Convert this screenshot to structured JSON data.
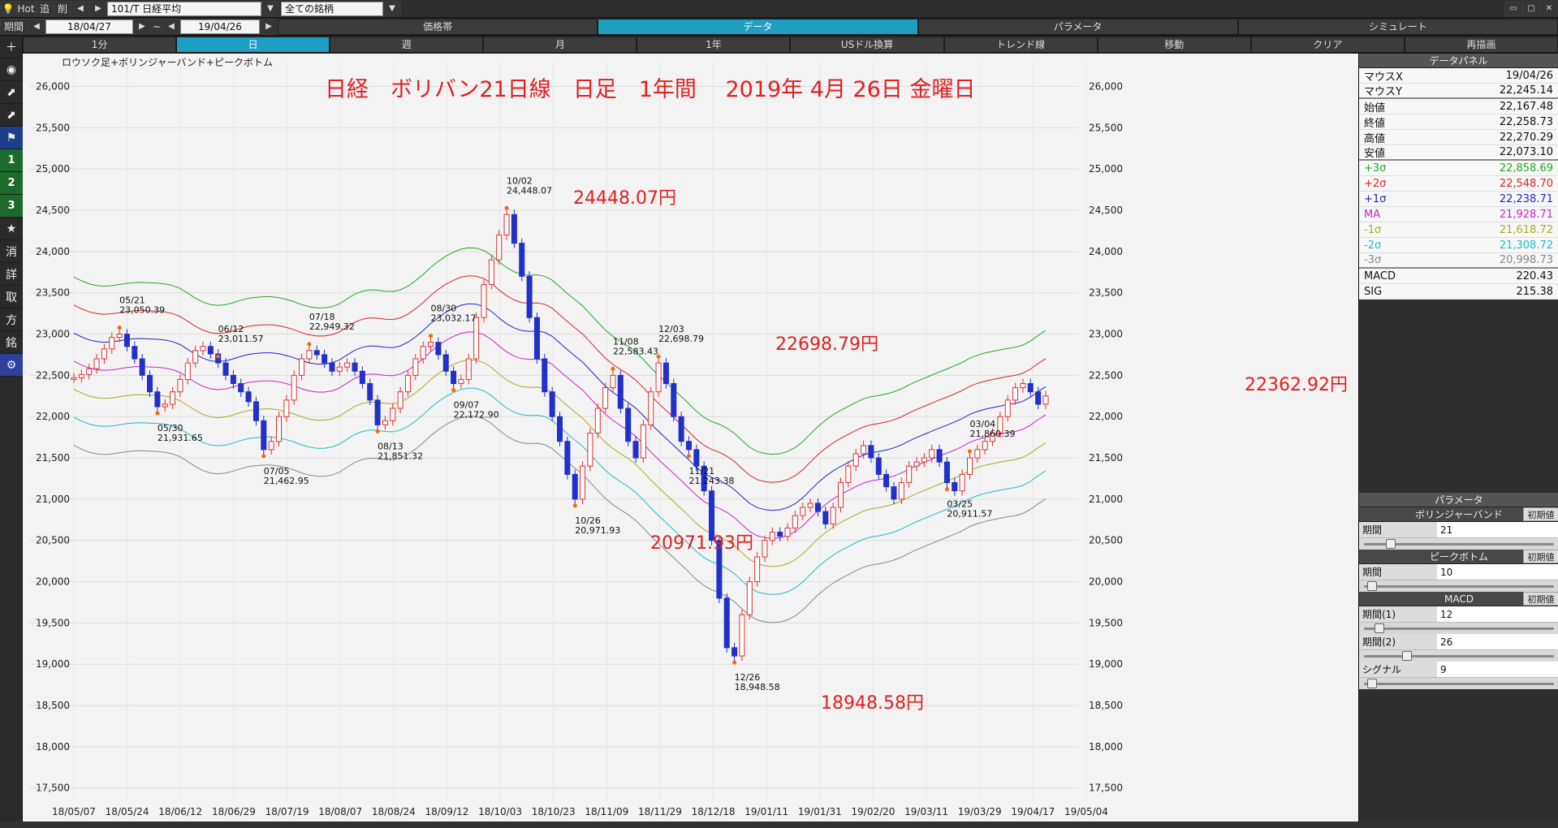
{
  "toolbar": {
    "hot_label": "Hot",
    "tsui_label": "追",
    "sakujo_label": "削",
    "symbol": "101/T 日経平均",
    "universe": "全ての銘柄"
  },
  "row2": {
    "period_label": "期間",
    "from_date": "18/04/27",
    "tilde": "~",
    "to_date": "19/04/26",
    "tabs": [
      "価格帯",
      "データ",
      "パラメータ",
      "シミュレート"
    ],
    "active_tab": 1
  },
  "row3": {
    "items": [
      "1分",
      "日",
      "週",
      "月",
      "1年",
      "USドル換算",
      "トレンド線",
      "移動",
      "クリア",
      "再描画"
    ],
    "active": 1
  },
  "sidebar": {
    "items": [
      "＋",
      "◉",
      "⬈",
      "⬈",
      "⚑",
      "1",
      "2",
      "3",
      "★",
      "消",
      "詳",
      "取",
      "方",
      "銘",
      "⚙"
    ]
  },
  "chart": {
    "caption": "ロウソク足+ボリンジャーバンド+ピークボトム",
    "title": "日経　ボリバン21日線　日足　1年間　 2019年 4月 26日 金曜日",
    "annotations": [
      "24448.07円",
      "22698.79円",
      "20971.93円",
      "18948.58円",
      "22362.92円"
    ]
  },
  "chart_data": {
    "type": "candlestick",
    "y_ticks": [
      17500,
      18000,
      18500,
      19000,
      19500,
      20000,
      20500,
      21000,
      21500,
      22000,
      22500,
      23000,
      23500,
      24000,
      24500,
      25000,
      25500,
      26000
    ],
    "y_tick_labels": [
      "17,500",
      "18,000",
      "18,500",
      "19,000",
      "19,500",
      "20,000",
      "20,500",
      "21,000",
      "21,500",
      "22,000",
      "22,500",
      "23,000",
      "23,500",
      "24,000",
      "24,500",
      "25,000",
      "25,500",
      "26,000"
    ],
    "ylim": [
      17350,
      26300
    ],
    "x_labels": [
      "18/05/07",
      "18/05/24",
      "18/06/12",
      "18/06/29",
      "18/07/19",
      "18/08/07",
      "18/08/24",
      "18/09/12",
      "18/10/03",
      "18/10/23",
      "18/11/09",
      "18/11/29",
      "18/12/18",
      "19/01/11",
      "19/01/31",
      "19/02/20",
      "19/03/11",
      "19/03/29",
      "19/04/17",
      "19/05/04"
    ],
    "close": [
      22470,
      22510,
      22580,
      22700,
      22820,
      22960,
      23000,
      22850,
      22700,
      22500,
      22300,
      22120,
      22150,
      22300,
      22450,
      22650,
      22800,
      22850,
      22760,
      22650,
      22500,
      22400,
      22300,
      22180,
      21950,
      21600,
      21700,
      22000,
      22200,
      22500,
      22700,
      22800,
      22750,
      22650,
      22550,
      22600,
      22650,
      22550,
      22400,
      22200,
      21900,
      21950,
      22100,
      22300,
      22500,
      22700,
      22850,
      22900,
      22750,
      22550,
      22400,
      22450,
      22700,
      23200,
      23600,
      23900,
      24200,
      24448,
      24100,
      23700,
      23200,
      22700,
      22300,
      22000,
      21700,
      21300,
      21000,
      21400,
      21800,
      22100,
      22350,
      22500,
      22100,
      21700,
      21500,
      21900,
      22300,
      22650,
      22400,
      22000,
      21700,
      21600,
      21400,
      21100,
      20500,
      19800,
      19200,
      19100,
      19600,
      20000,
      20300,
      20500,
      20600,
      20550,
      20650,
      20800,
      20900,
      20950,
      20850,
      20700,
      20900,
      21200,
      21400,
      21550,
      21650,
      21500,
      21300,
      21150,
      21000,
      21200,
      21400,
      21450,
      21500,
      21600,
      21450,
      21200,
      21100,
      21300,
      21500,
      21600,
      21700,
      21800,
      22000,
      22200,
      22350,
      22400,
      22300,
      22150,
      22250
    ],
    "bands": {
      "names": [
        "+3σ",
        "+2σ",
        "+1σ",
        "MA",
        "-1σ",
        "-2σ",
        "-3σ"
      ],
      "colors": [
        "#22aa22",
        "#dd2222",
        "#2222cc",
        "#cc22cc",
        "#aaaa22",
        "#22bbcc",
        "#888888"
      ],
      "widths": [
        1020,
        680,
        340,
        0,
        340,
        680,
        1020
      ]
    },
    "peaks": [
      {
        "date": "05/21",
        "value": "23,050.39"
      },
      {
        "date": "06/12",
        "value": "23,011.57"
      },
      {
        "date": "07/18",
        "value": "22,949.32"
      },
      {
        "date": "08/30",
        "value": "23,032.17"
      },
      {
        "date": "10/02",
        "value": "24,448.07"
      },
      {
        "date": "11/08",
        "value": "22,583.43"
      },
      {
        "date": "12/03",
        "value": "22,698.79"
      },
      {
        "date": "03/04",
        "value": "21,860.39"
      }
    ],
    "bottoms": [
      {
        "date": "05/30",
        "value": "21,931.65"
      },
      {
        "date": "07/05",
        "value": "21,462.95"
      },
      {
        "date": "08/13",
        "value": "21,851.32"
      },
      {
        "date": "09/07",
        "value": "22,172.90"
      },
      {
        "date": "10/26",
        "value": "20,971.93"
      },
      {
        "date": "11/21",
        "value": "21,243.38"
      },
      {
        "date": "12/26",
        "value": "18,948.58"
      },
      {
        "date": "03/25",
        "value": "20,911.57"
      }
    ]
  },
  "datapanel": {
    "title": "データパネル",
    "rows": [
      {
        "label": "マウスX",
        "value": "19/04/26",
        "color": "#111111"
      },
      {
        "label": "マウスY",
        "value": "22,245.14",
        "color": "#111111"
      },
      {
        "label": "始値",
        "value": "22,167.48",
        "color": "#111111"
      },
      {
        "label": "終値",
        "value": "22,258.73",
        "color": "#111111"
      },
      {
        "label": "高値",
        "value": "22,270.29",
        "color": "#111111"
      },
      {
        "label": "安値",
        "value": "22,073.10",
        "color": "#111111"
      },
      {
        "label": "+3σ",
        "value": "22,858.69",
        "color": "#22aa22"
      },
      {
        "label": "+2σ",
        "value": "22,548.70",
        "color": "#dd2222"
      },
      {
        "label": "+1σ",
        "value": "22,238.71",
        "color": "#2222cc"
      },
      {
        "label": "MA",
        "value": "21,928.71",
        "color": "#cc22cc"
      },
      {
        "label": "-1σ",
        "value": "21,618.72",
        "color": "#aaaa22"
      },
      {
        "label": "-2σ",
        "value": "21,308.72",
        "color": "#22bbcc"
      },
      {
        "label": "-3σ",
        "value": "20,998.73",
        "color": "#888888"
      },
      {
        "label": "MACD",
        "value": "220.43",
        "color": "#111111"
      },
      {
        "label": "SIG",
        "value": "215.38",
        "color": "#111111"
      }
    ]
  },
  "params": {
    "title": "パラメータ",
    "reset_label": "初期値",
    "groups": [
      {
        "name": "ボリンジャーバンド",
        "rows": [
          {
            "label": "期間",
            "value": "21",
            "level": 0.12
          }
        ]
      },
      {
        "name": "ピークボトム",
        "rows": [
          {
            "label": "期間",
            "value": "10",
            "level": 0.02
          }
        ]
      },
      {
        "name": "MACD",
        "rows": [
          {
            "label": "期間(1)",
            "value": "12",
            "level": 0.06
          },
          {
            "label": "期間(2)",
            "value": "26",
            "level": 0.21
          },
          {
            "label": "シグナル",
            "value": "9",
            "level": 0.02
          }
        ]
      }
    ]
  }
}
